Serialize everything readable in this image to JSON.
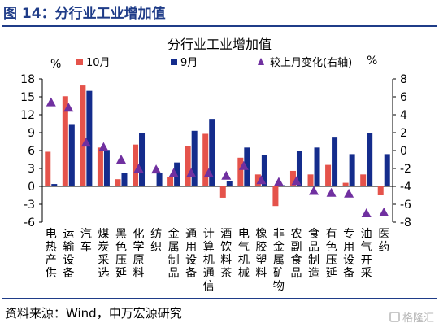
{
  "figure_title": "图 14：分行业工业增加值",
  "source_note": "资料来源：Wind，申万宏源研究",
  "watermark": "格隆汇",
  "chart_data": {
    "type": "bar",
    "title": "分行业工业增加值",
    "left_unit": "%",
    "right_unit": "%",
    "ylim": [
      -6,
      18
    ],
    "left_ticks": [
      "18",
      "15",
      "12",
      "9",
      "6",
      "3",
      "0",
      "-3",
      "-6"
    ],
    "y2lim": [
      -8,
      8
    ],
    "right_ticks": [
      "8",
      "6",
      "4",
      "2",
      "0",
      "-2",
      "-4",
      "-6",
      "-8"
    ],
    "categories": [
      "电热产供",
      "运输设备",
      "汽车",
      "煤炭采选",
      "黑色压延",
      "化学原料",
      "纺织",
      "金属制品",
      "通用设备",
      "计算机通信",
      "酒饮料茶",
      "电气机械",
      "橡胶塑料",
      "非金属矿物",
      "农副食品",
      "食品制造",
      "有色压延",
      "专用设备",
      "油气开采",
      "医药"
    ],
    "series": [
      {
        "name": "10月",
        "axis": "left",
        "color": "#e5534b",
        "values": [
          5.8,
          15.1,
          16.9,
          6.5,
          1.2,
          7.0,
          0.1,
          1.5,
          6.8,
          8.8,
          -1.9,
          4.8,
          2.0,
          -3.3,
          2.6,
          2.0,
          3.6,
          0.6,
          2.0,
          -1.5
        ]
      },
      {
        "name": "9月",
        "axis": "left",
        "color": "#142c8c",
        "values": [
          0.4,
          10.3,
          16.0,
          6.1,
          2.2,
          9.0,
          2.2,
          4.0,
          9.3,
          11.3,
          0.9,
          6.5,
          5.3,
          0.2,
          6.0,
          6.5,
          8.3,
          5.4,
          8.9,
          5.4
        ]
      },
      {
        "name": "较上月变化(右轴)",
        "axis": "right",
        "type": "scatter",
        "color": "#7030a0",
        "values": [
          5.4,
          4.8,
          0.9,
          0.4,
          -1.0,
          -2.0,
          -2.1,
          -2.5,
          -2.5,
          -2.5,
          -2.8,
          -1.7,
          -3.3,
          -3.5,
          -3.4,
          -4.5,
          -4.7,
          -4.8,
          -7.0,
          -6.9
        ]
      }
    ]
  }
}
